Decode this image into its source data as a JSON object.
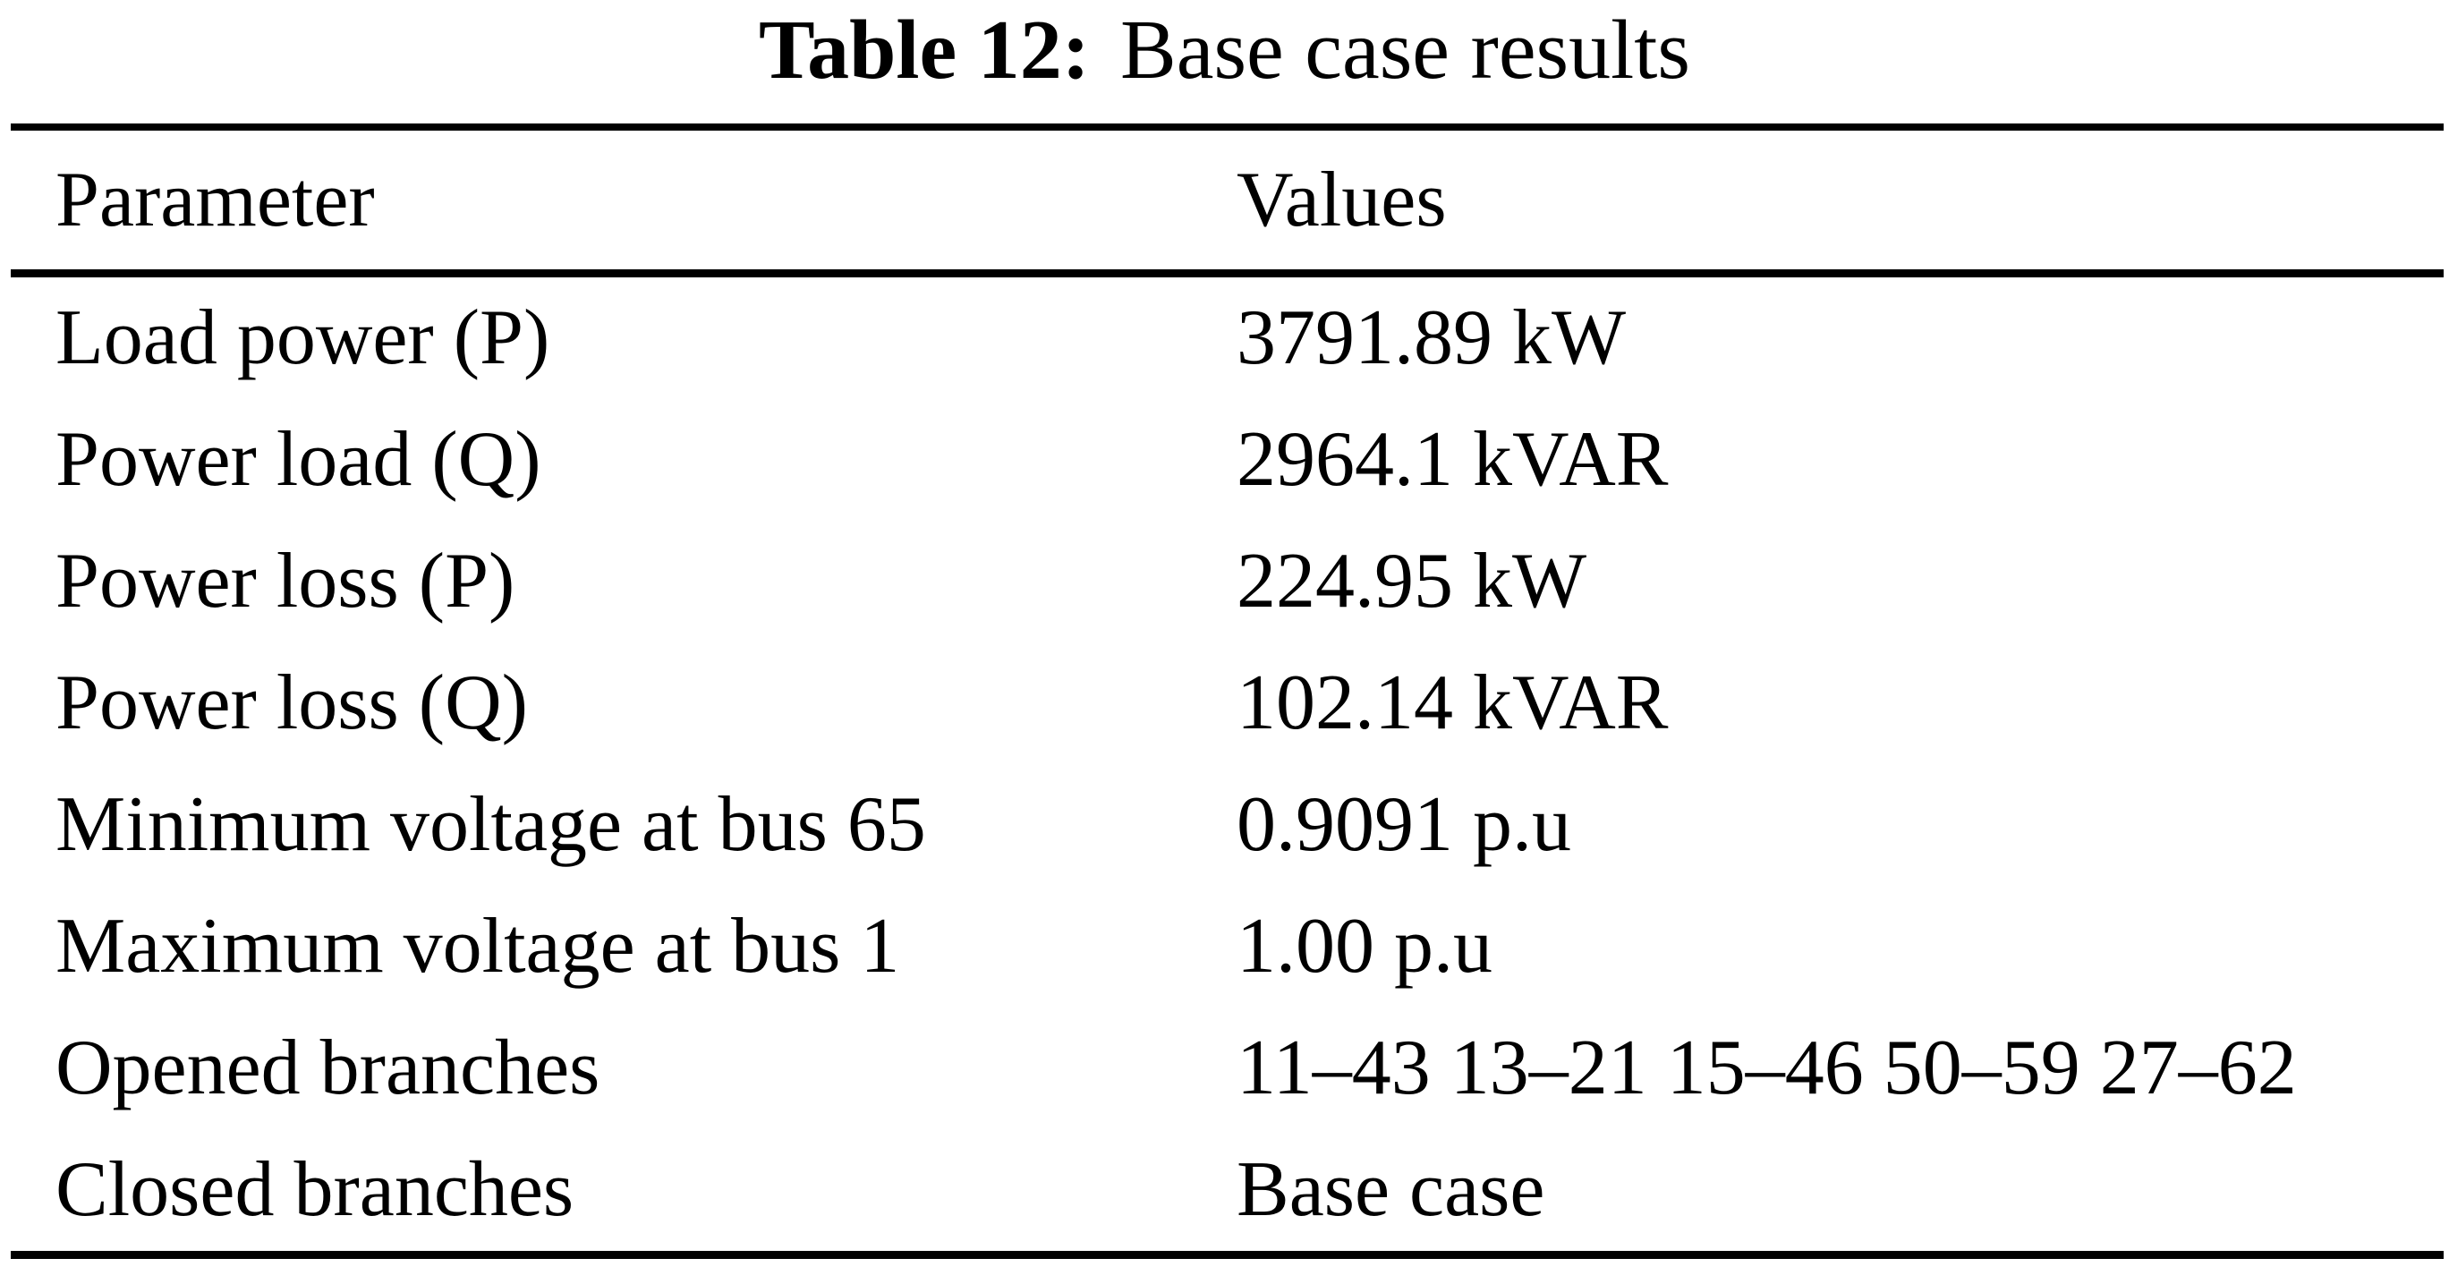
{
  "caption": {
    "label": "Table 12:",
    "title": "Base case results"
  },
  "table": {
    "headers": {
      "parameter": "Parameter",
      "values": "Values"
    },
    "rows": [
      {
        "parameter": "Load power (P)",
        "value": "3791.89 kW"
      },
      {
        "parameter": "Power load (Q)",
        "value": "2964.1 kVAR"
      },
      {
        "parameter": "Power loss (P)",
        "value": "224.95 kW"
      },
      {
        "parameter": "Power loss (Q)",
        "value": "102.14 kVAR"
      },
      {
        "parameter": "Minimum voltage at bus 65",
        "value": "0.9091 p.u"
      },
      {
        "parameter": "Maximum voltage at bus 1",
        "value": "1.00 p.u"
      },
      {
        "parameter": "Opened branches",
        "value": "11–43 13–21 15–46 50–59 27–62"
      },
      {
        "parameter": "Closed branches",
        "value": "Base case"
      }
    ]
  },
  "colors": {
    "background": "#ffffff",
    "text": "#000000",
    "rule": "#000000"
  }
}
